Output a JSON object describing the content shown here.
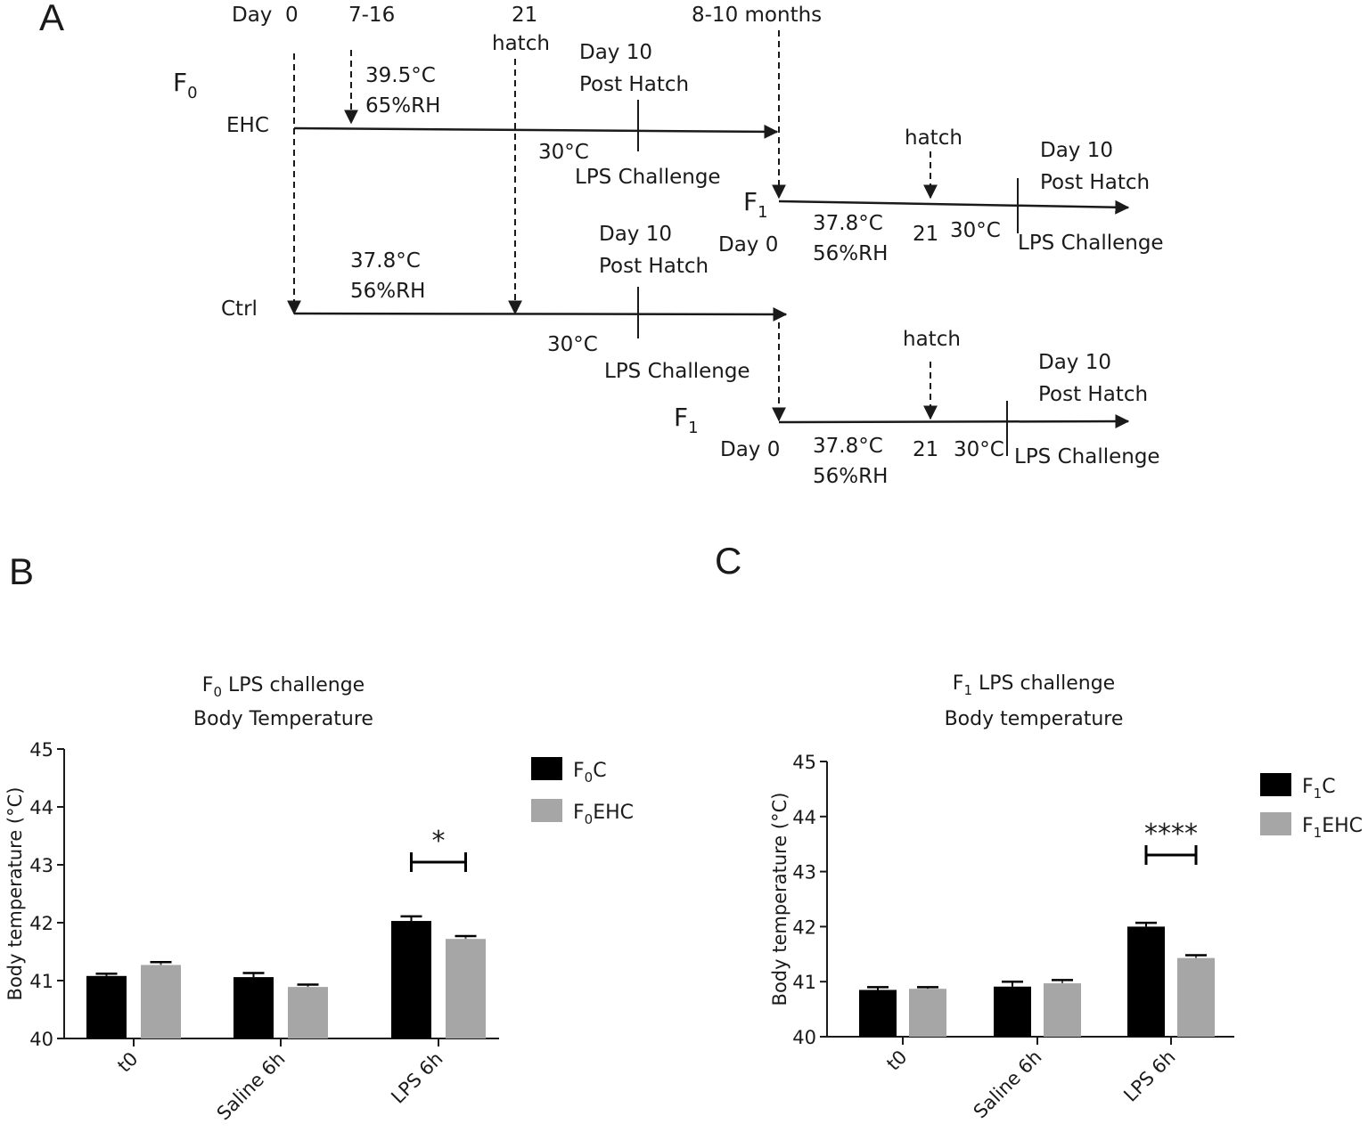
{
  "panel_a": {
    "letter": "A",
    "top_labels": {
      "day": "Day",
      "day0": "0",
      "d716": "7-16",
      "d21": "21",
      "hatch": "hatch",
      "months": "8-10 months"
    },
    "f0": {
      "main": "F",
      "sub": "0"
    },
    "ehc": {
      "label": "EHC",
      "temp": "39.5°C",
      "rh": "65%RH",
      "day10": "Day 10",
      "post_hatch": "Post Hatch",
      "temp30": "30°C",
      "lps": "LPS Challenge"
    },
    "ctrl": {
      "label": "Ctrl",
      "temp": "37.8°C",
      "rh": "56%RH",
      "day10": "Day 10",
      "post_hatch": "Post Hatch",
      "temp30": "30°C",
      "lps": "LPS Challenge"
    },
    "f1_upper": {
      "main": "F",
      "sub": "1",
      "hatch": "hatch",
      "day10": "Day 10",
      "post_hatch": "Post Hatch",
      "day0": "Day 0",
      "temp": "37.8°C",
      "rh": "56%RH",
      "d21": "21",
      "temp30": "30°C",
      "lps": "LPS Challenge"
    },
    "f1_lower": {
      "main": "F",
      "sub": "1",
      "hatch": "hatch",
      "day10": "Day 10",
      "post_hatch": "Post Hatch",
      "day0": "Day 0",
      "temp": "37.8°C",
      "rh": "56%RH",
      "d21": "21",
      "temp30": "30°C",
      "lps": "LPS Challenge"
    }
  },
  "colors": {
    "black_bar": "#000000",
    "grey_bar": "#a6a6a7",
    "line": "#1a1a1a"
  },
  "chart_data": [
    {
      "panel": "B",
      "type": "bar",
      "title_line1_main": "F",
      "title_line1_sub": "0",
      "title_line1_rest": " LPS challenge",
      "title_line2": "Body Temperature",
      "xlabel": "",
      "ylabel": "Body temperature (°C)",
      "ylim": [
        40,
        45
      ],
      "yticks": [
        "40",
        "41",
        "42",
        "43",
        "44",
        "45"
      ],
      "categories": [
        "t0",
        "Saline 6h",
        "LPS 6h"
      ],
      "series": [
        {
          "legend_main": "F",
          "legend_sub": "0",
          "legend_rest": "C",
          "color": "#000000",
          "values": [
            41.08,
            41.06,
            42.03
          ],
          "errors": [
            0.04,
            0.07,
            0.08
          ]
        },
        {
          "legend_main": "F",
          "legend_sub": "0",
          "legend_rest": "EHC",
          "color": "#a6a6a7",
          "values": [
            41.27,
            40.89,
            41.72
          ],
          "errors": [
            0.05,
            0.04,
            0.05
          ]
        }
      ],
      "significance": {
        "category_index": 2,
        "label": "*"
      },
      "legend_position": "top-right"
    },
    {
      "panel": "C",
      "type": "bar",
      "title_line1_main": "F",
      "title_line1_sub": "1",
      "title_line1_rest": " LPS challenge",
      "title_line2": "Body temperature",
      "xlabel": "",
      "ylabel": "Body temperature (°C)",
      "ylim": [
        40,
        45
      ],
      "yticks": [
        "40",
        "41",
        "42",
        "43",
        "44",
        "45"
      ],
      "categories": [
        "t0",
        "Saline 6h",
        "LPS 6h"
      ],
      "series": [
        {
          "legend_main": "F",
          "legend_sub": "1",
          "legend_rest": "C",
          "color": "#000000",
          "values": [
            40.85,
            40.91,
            42.0
          ],
          "errors": [
            0.05,
            0.09,
            0.07
          ]
        },
        {
          "legend_main": "F",
          "legend_sub": "1",
          "legend_rest": "EHC",
          "color": "#a6a6a7",
          "values": [
            40.87,
            40.97,
            41.43
          ],
          "errors": [
            0.03,
            0.06,
            0.05
          ]
        }
      ],
      "significance": {
        "category_index": 2,
        "label": "****"
      },
      "legend_position": "top-right"
    }
  ]
}
